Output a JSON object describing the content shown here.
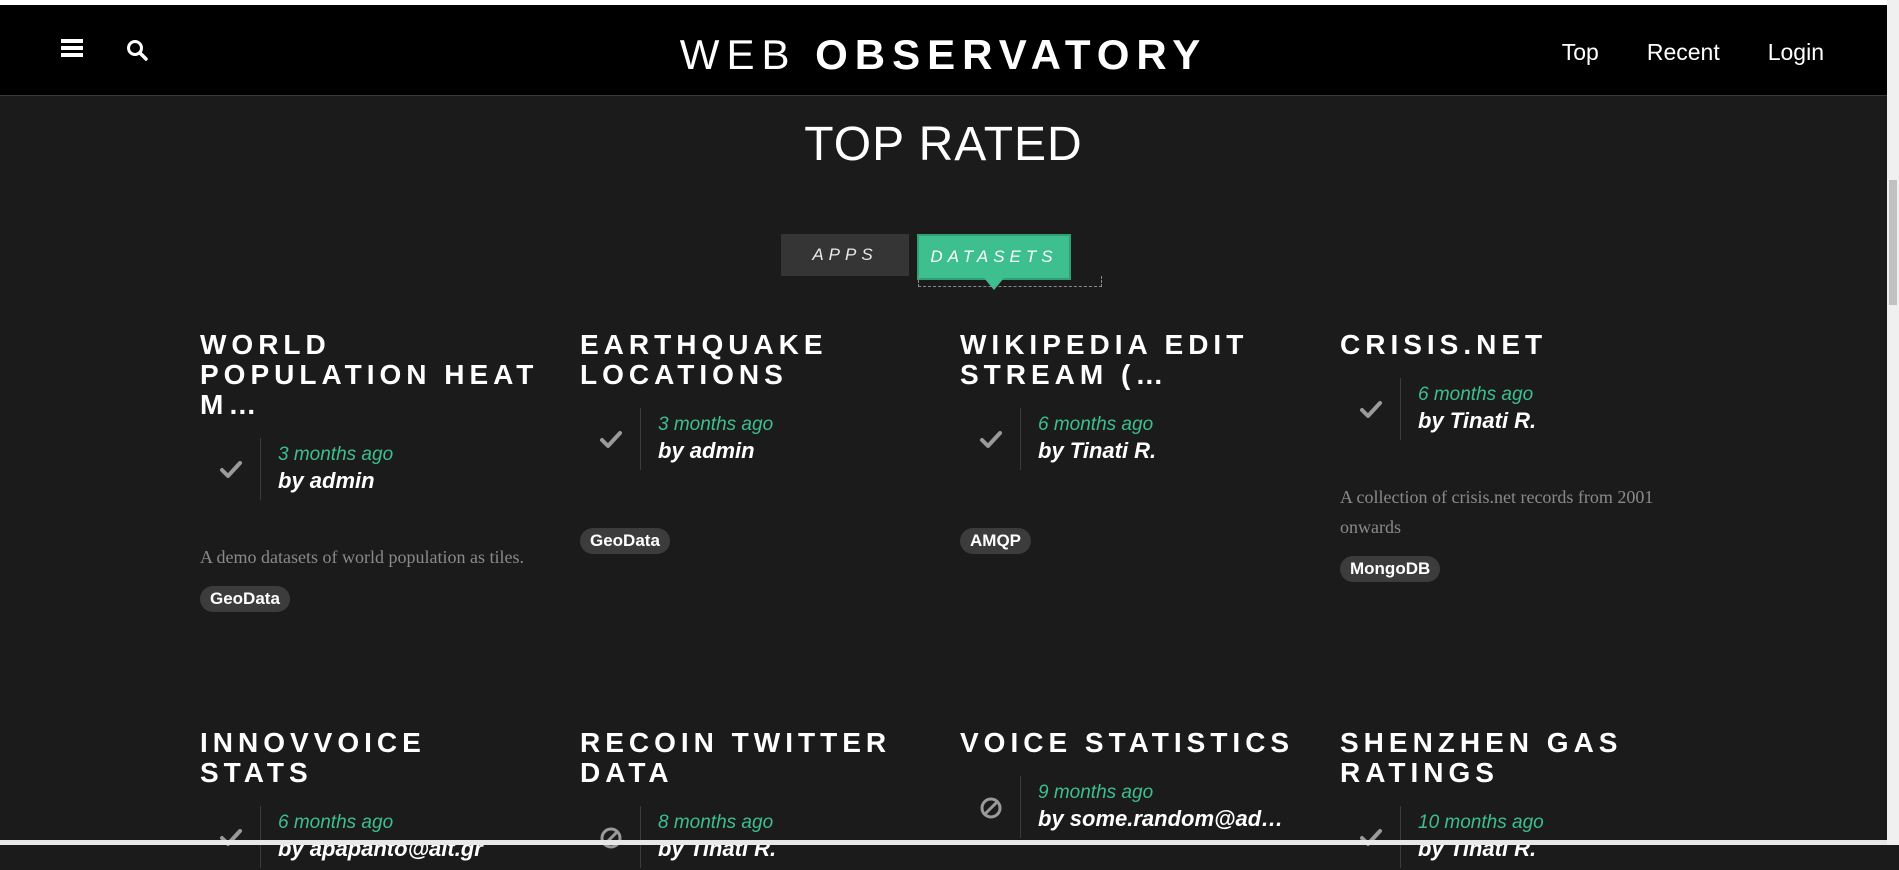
{
  "brand": {
    "light": "WEB ",
    "bold": "OBSERVATORY"
  },
  "nav": {
    "links": [
      "Top",
      "Recent",
      "Login"
    ]
  },
  "page_title": "TOP RATED",
  "tabs": [
    {
      "label": "APPS",
      "active": false
    },
    {
      "label": "DATASETS",
      "active": true
    }
  ],
  "colors": {
    "accent": "#3dbf8f",
    "navbar": "#000000",
    "background": "#1b1b1b"
  },
  "cards": [
    {
      "title": "WORLD POPULATION HEAT M…",
      "status": "check-icon",
      "time": "3 months ago",
      "author": "by admin",
      "description": "A demo datasets of world population as tiles.",
      "tag": "GeoData"
    },
    {
      "title": "EARTHQUAKE LOCATIONS",
      "status": "check-icon",
      "time": "3 months ago",
      "author": "by admin",
      "description": "",
      "tag": "GeoData"
    },
    {
      "title": "WIKIPEDIA EDIT STREAM (…",
      "status": "check-icon",
      "time": "6 months ago",
      "author": "by Tinati R.",
      "description": "",
      "tag": "AMQP"
    },
    {
      "title": "CRISIS.NET",
      "status": "check-icon",
      "time": "6 months ago",
      "author": "by Tinati R.",
      "description": "A collection of crisis.net records from 2001 onwards",
      "tag": "MongoDB"
    },
    {
      "title": "INNOVVOICE STATS",
      "status": "check-icon",
      "time": "6 months ago",
      "author": "by apapanto@ait.gr",
      "description": "",
      "tag": ""
    },
    {
      "title": "RECOIN TWITTER DATA",
      "status": "blocked-icon",
      "time": "8 months ago",
      "author": "by Tinati R.",
      "description": "",
      "tag": ""
    },
    {
      "title": "VOICE STATISTICS",
      "status": "blocked-icon",
      "time": "9 months ago",
      "author": "by some.random@ad…",
      "description": "",
      "tag": ""
    },
    {
      "title": "SHENZHEN GAS RATINGS",
      "status": "check-icon",
      "time": "10 months ago",
      "author": "by Tinati R.",
      "description": "",
      "tag": ""
    }
  ]
}
